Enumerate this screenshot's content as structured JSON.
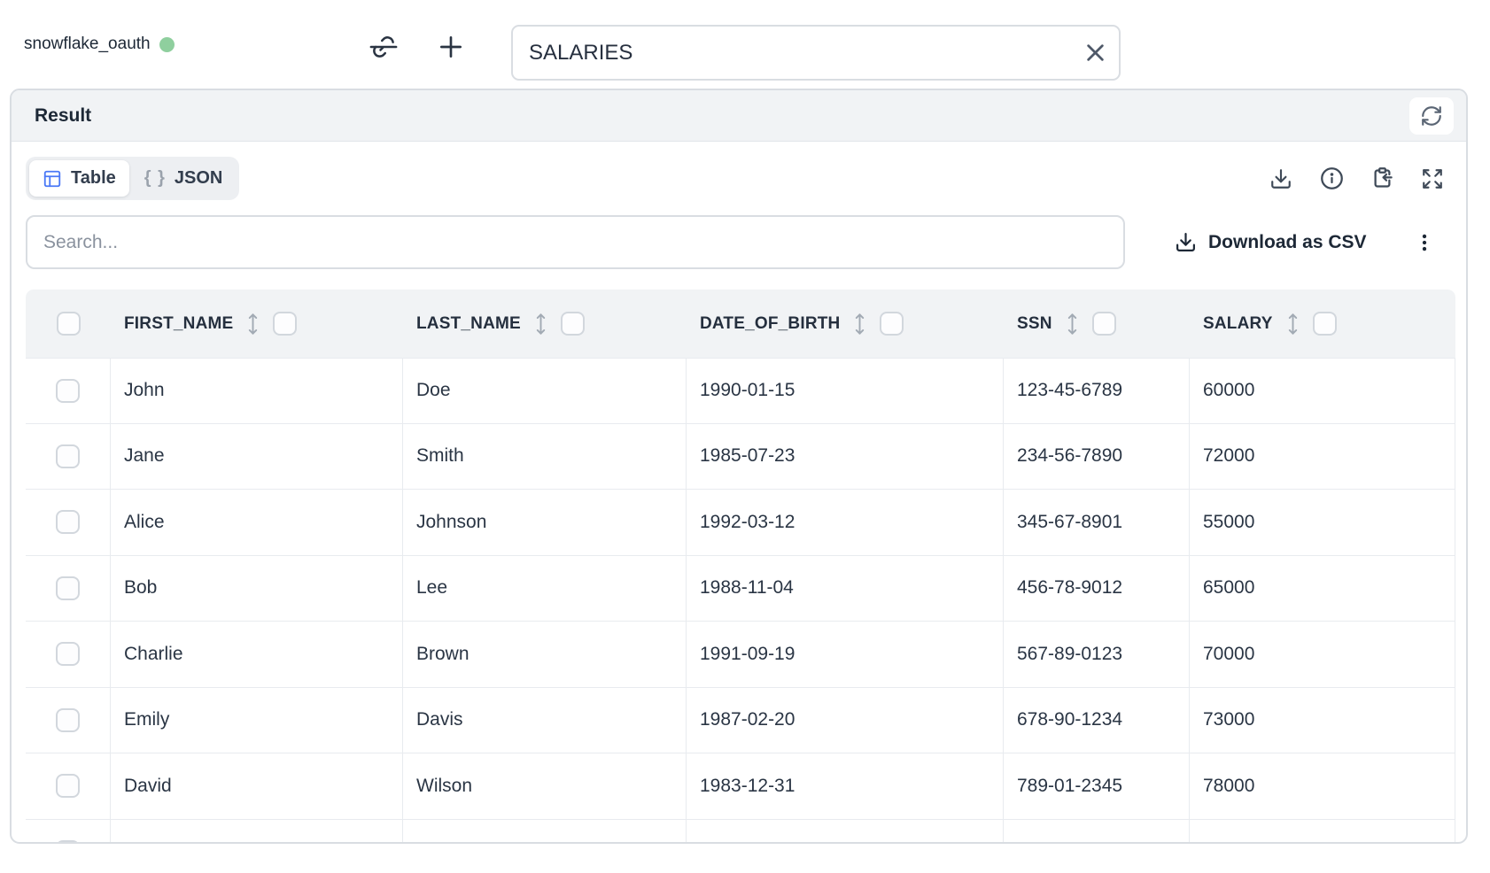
{
  "connection": {
    "name": "snowflake_oauth",
    "status": "connected",
    "status_color": "#8fcf9e"
  },
  "topbar": {
    "unlink_icon": "link-off-icon",
    "add_icon": "plus-icon",
    "table_name_input": {
      "value": "SALARIES",
      "clear_icon": "x-icon"
    }
  },
  "result_panel": {
    "title": "Result",
    "refresh_icon": "refresh-icon",
    "tabs": [
      {
        "label": "Table",
        "icon": "table-icon",
        "active": true
      },
      {
        "label": "JSON",
        "icon": "braces-icon",
        "braces": "{ }",
        "active": false
      }
    ],
    "toolbar_icons": [
      "download-icon",
      "info-icon",
      "clipboard-paste-icon",
      "expand-icon"
    ],
    "search": {
      "placeholder": "Search..."
    },
    "download_csv_label": "Download as CSV",
    "more_icon": "kebab-menu-icon"
  },
  "table": {
    "columns": [
      "FIRST_NAME",
      "LAST_NAME",
      "DATE_OF_BIRTH",
      "SSN",
      "SALARY"
    ],
    "rows": [
      [
        "John",
        "Doe",
        "1990-01-15",
        "123-45-6789",
        "60000"
      ],
      [
        "Jane",
        "Smith",
        "1985-07-23",
        "234-56-7890",
        "72000"
      ],
      [
        "Alice",
        "Johnson",
        "1992-03-12",
        "345-67-8901",
        "55000"
      ],
      [
        "Bob",
        "Lee",
        "1988-11-04",
        "456-78-9012",
        "65000"
      ],
      [
        "Charlie",
        "Brown",
        "1991-09-19",
        "567-89-0123",
        "70000"
      ],
      [
        "Emily",
        "Davis",
        "1987-02-20",
        "678-90-1234",
        "73000"
      ],
      [
        "David",
        "Wilson",
        "1983-12-31",
        "789-01-2345",
        "78000"
      ]
    ]
  },
  "colors": {
    "accent_blue": "#4b79f6",
    "status_green": "#8fcf9e",
    "header_bg": "#f1f3f5",
    "border": "#d9dde2",
    "text_dark": "#1d2836"
  }
}
